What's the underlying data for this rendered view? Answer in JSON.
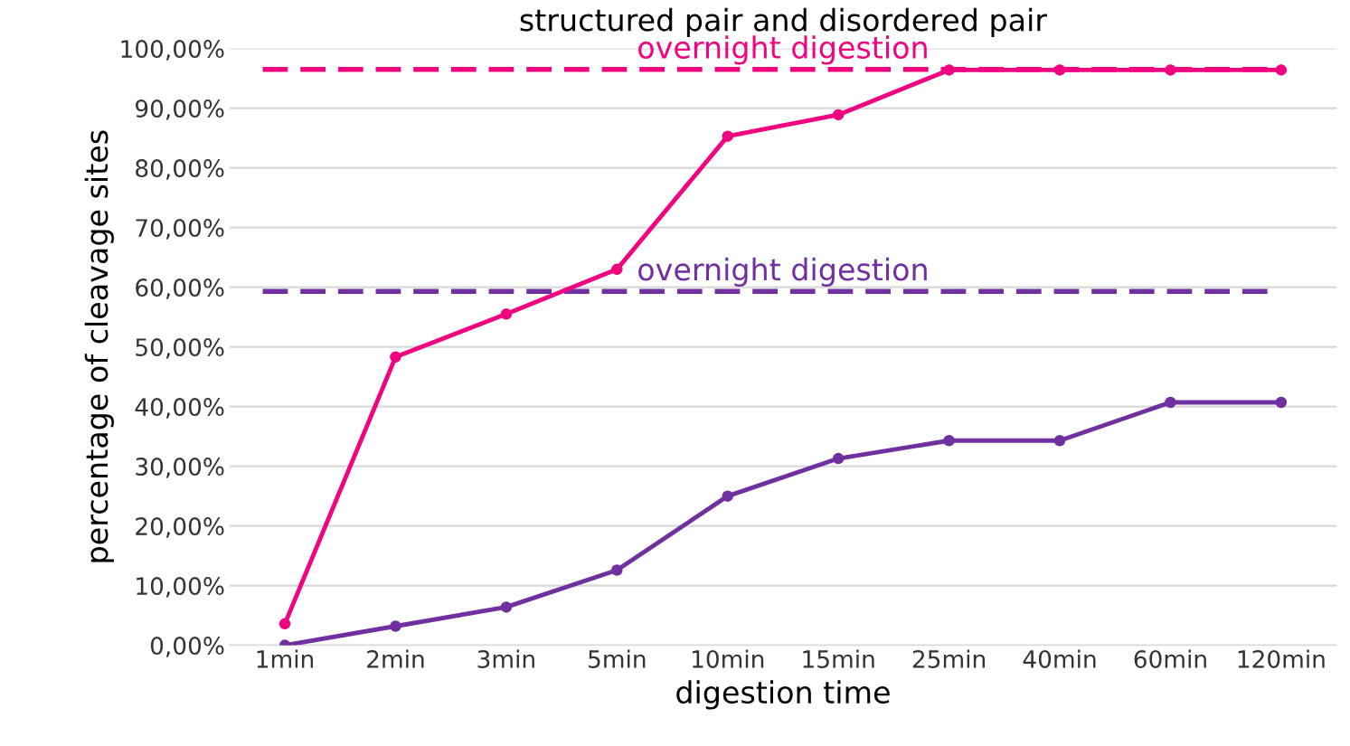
{
  "chart_data": {
    "type": "line",
    "title": "structured pair and disordered pair",
    "xlabel": "digestion time",
    "ylabel": "percentage of cleavage sites",
    "categories": [
      "1min",
      "2min",
      "3min",
      "5min",
      "10min",
      "15min",
      "25min",
      "40min",
      "60min",
      "120min"
    ],
    "series": [
      {
        "color": "#f0047f",
        "values": [
          3.6,
          48.3,
          55.5,
          63.0,
          85.3,
          88.9,
          96.4,
          96.4,
          96.4,
          96.4
        ]
      },
      {
        "color": "#7030a0",
        "values": [
          0.0,
          3.2,
          6.4,
          12.6,
          25.0,
          31.3,
          34.3,
          34.3,
          40.7,
          40.7
        ]
      }
    ],
    "ref_lines": [
      {
        "axis": "y",
        "value": 96.5,
        "label": "overnight digestion",
        "color": "#f0047f",
        "line_style": "dashed"
      },
      {
        "axis": "y",
        "value": 59.3,
        "label": "overnight digestion",
        "color": "#7030a0",
        "line_style": "dashed"
      }
    ],
    "ylim": [
      0,
      100
    ],
    "yticks": [
      {
        "value": 0,
        "label": "0,00%"
      },
      {
        "value": 10,
        "label": "10,00%"
      },
      {
        "value": 20,
        "label": "20,00%"
      },
      {
        "value": 30,
        "label": "30,00%"
      },
      {
        "value": 40,
        "label": "40,00%"
      },
      {
        "value": 50,
        "label": "50,00%"
      },
      {
        "value": 60,
        "label": "60,00%"
      },
      {
        "value": 70,
        "label": "70,00%"
      },
      {
        "value": 80,
        "label": "80,00%"
      },
      {
        "value": 90,
        "label": "90,00%"
      },
      {
        "value": 100,
        "label": "100,00%"
      }
    ],
    "grid": "y",
    "marker": "circle",
    "line_style": "solid",
    "legend": false
  }
}
